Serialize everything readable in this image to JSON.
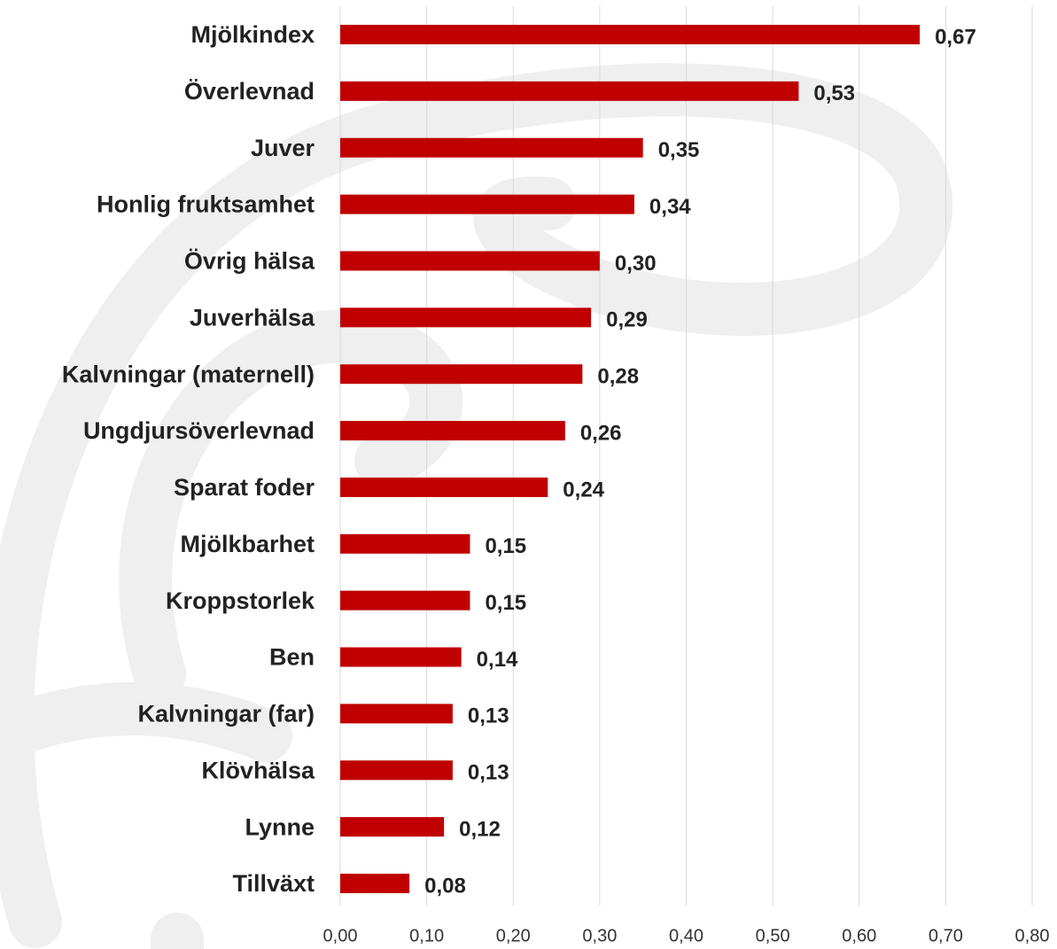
{
  "chart_data": {
    "type": "bar",
    "orientation": "horizontal",
    "categories": [
      "Mjölkindex",
      "Överlevnad",
      "Juver",
      "Honlig fruktsamhet",
      "Övrig hälsa",
      "Juverhälsa",
      "Kalvningar (maternell)",
      "Ungdjursöverlevnad",
      "Sparat foder",
      "Mjölkbarhet",
      "Kroppstorlek",
      "Ben",
      "Kalvningar (far)",
      "Klövhälsa",
      "Lynne",
      "Tillväxt"
    ],
    "values": [
      0.67,
      0.53,
      0.35,
      0.34,
      0.3,
      0.29,
      0.28,
      0.26,
      0.24,
      0.15,
      0.15,
      0.14,
      0.13,
      0.13,
      0.12,
      0.08
    ],
    "value_labels": [
      "0,67",
      "0,53",
      "0,35",
      "0,34",
      "0,30",
      "0,29",
      "0,28",
      "0,26",
      "0,24",
      "0,15",
      "0,15",
      "0,14",
      "0,13",
      "0,13",
      "0,12",
      "0,08"
    ],
    "color": "#c00000",
    "xlim": [
      0,
      0.8
    ],
    "xticks": [
      {
        "value": 0,
        "label": "0,00"
      },
      {
        "value": 0.1,
        "label": "0,10"
      },
      {
        "value": 0.2,
        "label": "0,20"
      },
      {
        "value": 0.3,
        "label": "0,30"
      },
      {
        "value": 0.4,
        "label": "0,40"
      },
      {
        "value": 0.5,
        "label": "0,50"
      },
      {
        "value": 0.6,
        "label": "0,60"
      },
      {
        "value": 0.7,
        "label": "0,70"
      },
      {
        "value": 0.8,
        "label": "0,80"
      }
    ],
    "grid": true
  }
}
